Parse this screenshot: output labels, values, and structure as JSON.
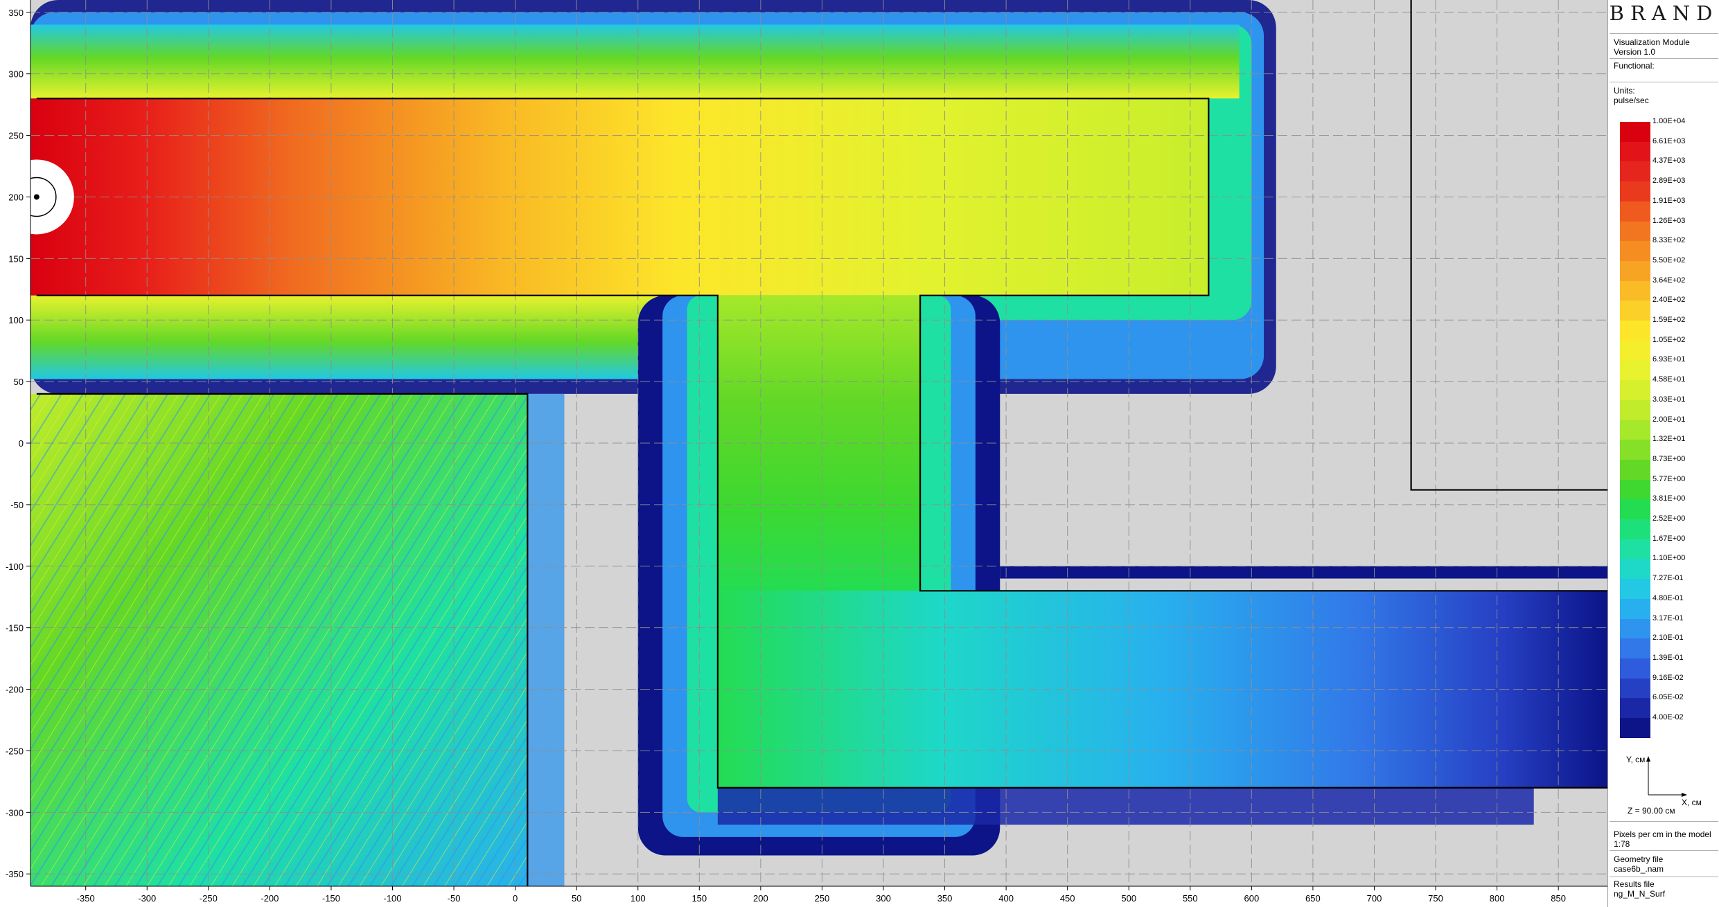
{
  "panel": {
    "brand": "BRAND",
    "module": "Visualization Module",
    "version": "Version 1.0",
    "functional": "Functional:",
    "units_label": "Units:",
    "units": "pulse/sec",
    "plane": "Z = 90.00 см",
    "pixels_label": "Pixels per cm in the model",
    "pixels_value": "1:78",
    "geometry_label": "Geometry file",
    "geometry_file": "case6b_.nam",
    "results_label": "Results file",
    "results_file": "ng_M_N_Surf",
    "axis_y": "Y, см",
    "axis_x": "X, см"
  },
  "colors": {
    "background": "#d4d4d4",
    "grid": "#8f8f8f",
    "wall": "#000000",
    "panel_border": "#9a9a9a"
  },
  "chart_data": {
    "type": "heatmap",
    "title": "",
    "xlabel": "",
    "ylabel": "",
    "xlim": [
      -395,
      890
    ],
    "ylim": [
      -360,
      360
    ],
    "grid": true,
    "x_ticks": [
      -350,
      -300,
      -250,
      -200,
      -150,
      -100,
      -50,
      0,
      50,
      100,
      150,
      200,
      250,
      300,
      350,
      400,
      450,
      500,
      550,
      600,
      650,
      700,
      750,
      800,
      850
    ],
    "y_ticks": [
      350,
      300,
      250,
      200,
      150,
      100,
      50,
      0,
      -50,
      -100,
      -150,
      -200,
      -250,
      -300,
      -350
    ],
    "legend_placement": "right",
    "legend": {
      "units": "pulse/sec",
      "levels": [
        "1.00E+04",
        "6.61E+03",
        "4.37E+03",
        "2.89E+03",
        "1.91E+03",
        "1.26E+03",
        "8.33E+02",
        "5.50E+02",
        "3.64E+02",
        "2.40E+02",
        "1.59E+02",
        "1.05E+02",
        "6.93E+01",
        "4.58E+01",
        "3.03E+01",
        "2.00E+01",
        "1.32E+01",
        "8.73E+00",
        "5.77E+00",
        "3.81E+00",
        "2.52E+00",
        "1.67E+00",
        "1.10E+00",
        "7.27E-01",
        "4.80E-01",
        "3.17E-01",
        "2.10E-01",
        "1.39E-01",
        "9.16E-02",
        "6.05E-02",
        "4.00E-02"
      ],
      "colors": [
        "#d90010",
        "#e2141a",
        "#e6261e",
        "#ea3a1e",
        "#ef5a1e",
        "#f27620",
        "#f58d22",
        "#f7a424",
        "#f9bb26",
        "#fbd028",
        "#fde62a",
        "#f5ee2c",
        "#e8f22e",
        "#d6f02e",
        "#c0ec2c",
        "#a6e82a",
        "#86e028",
        "#64d826",
        "#3ed830",
        "#24dc52",
        "#1ee07a",
        "#1ee0a2",
        "#1ed8c8",
        "#22c8e4",
        "#28b0ee",
        "#2e94ee",
        "#3278e8",
        "#2f5cdc",
        "#2640c4",
        "#1a28a8",
        "#0c1488"
      ]
    },
    "source": {
      "x": -390,
      "y": 200
    },
    "walls": [
      [
        [
          -390,
          280
        ],
        [
          565,
          280
        ],
        [
          565,
          120
        ],
        [
          330,
          120
        ],
        [
          330,
          -120
        ],
        [
          890,
          -120
        ]
      ],
      [
        [
          -390,
          120
        ],
        [
          165,
          120
        ],
        [
          165,
          -280
        ],
        [
          890,
          -280
        ]
      ],
      [
        [
          -390,
          40
        ],
        [
          10,
          40
        ],
        [
          10,
          -360
        ]
      ],
      [
        [
          730,
          360
        ],
        [
          730,
          -38
        ],
        [
          890,
          -38
        ]
      ]
    ],
    "field_samples": [
      {
        "region": "upper duct near source",
        "x": -330,
        "y": 200,
        "value": 10000
      },
      {
        "region": "upper duct middle",
        "x": 0,
        "y": 200,
        "value": 159
      },
      {
        "region": "upper duct end",
        "x": 500,
        "y": 200,
        "value": 45.8
      },
      {
        "region": "vertical duct top",
        "x": 250,
        "y": 60,
        "value": 20
      },
      {
        "region": "vertical duct middle",
        "x": 250,
        "y": -20,
        "value": 8.73
      },
      {
        "region": "lower duct start",
        "x": 250,
        "y": -200,
        "value": 3.81
      },
      {
        "region": "lower duct middle",
        "x": 500,
        "y": -200,
        "value": 0.727
      },
      {
        "region": "lower duct end",
        "x": 850,
        "y": -200,
        "value": 0.04
      },
      {
        "region": "lower-left room",
        "x": -200,
        "y": -150,
        "value": 2.52
      }
    ]
  }
}
